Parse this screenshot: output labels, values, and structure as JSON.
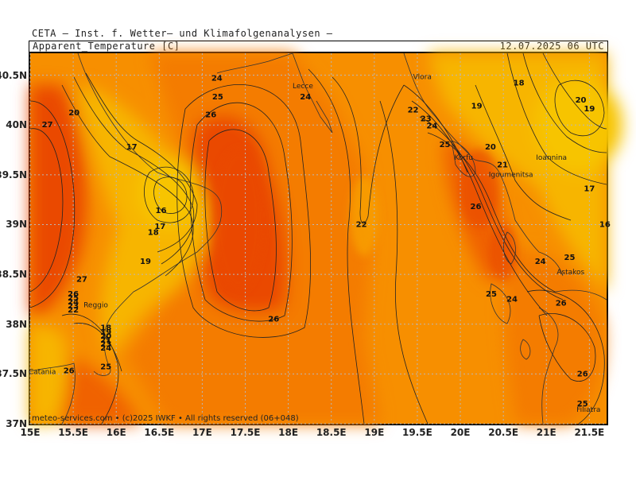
{
  "header": {
    "source": "CETA – Inst. f. Wetter– und Klimafolgenanalysen –",
    "product": "Apparent_Temperature [C]",
    "valid_time": "12.07.2025 06 UTC"
  },
  "footer": "meteo-services.com • (c)2025 IWKF • All rights reserved (06+048)",
  "axes": {
    "lat_ticks": [
      "40.5N",
      "40N",
      "39.5N",
      "39N",
      "38.5N",
      "38N",
      "37.5N",
      "37N"
    ],
    "lon_ticks": [
      "15E",
      "15.5E",
      "16E",
      "16.5E",
      "17E",
      "17.5E",
      "18E",
      "18.5E",
      "19E",
      "19.5E",
      "20E",
      "20.5E",
      "21E",
      "21.5E"
    ],
    "lat_values": [
      40.5,
      40,
      39.5,
      39,
      38.5,
      38,
      37.5,
      37
    ],
    "lon_values": [
      15,
      15.5,
      16,
      16.5,
      17,
      17.5,
      18,
      18.5,
      19,
      19.5,
      20,
      20.5,
      21,
      21.5
    ],
    "lon_range": [
      15,
      21.7
    ],
    "lat_range": [
      37,
      40.72
    ]
  },
  "colors": {
    "t17": "#f7b500",
    "t19": "#f7a000",
    "t22": "#f78f00",
    "t24": "#f47b00",
    "t26": "#f06200",
    "t28": "#ea4a00",
    "grid": "#b8b8b8"
  },
  "contour_labels": [
    {
      "text": "24",
      "lon": 17.17,
      "lat": 40.47
    },
    {
      "text": "25",
      "lon": 17.18,
      "lat": 40.28
    },
    {
      "text": "26",
      "lon": 17.1,
      "lat": 40.1
    },
    {
      "text": "24",
      "lon": 18.2,
      "lat": 40.28
    },
    {
      "text": "20",
      "lon": 15.51,
      "lat": 40.12
    },
    {
      "text": "27",
      "lon": 15.2,
      "lat": 40.0
    },
    {
      "text": "17",
      "lon": 16.18,
      "lat": 39.78
    },
    {
      "text": "16",
      "lon": 16.52,
      "lat": 39.14
    },
    {
      "text": "17",
      "lon": 16.51,
      "lat": 38.98
    },
    {
      "text": "18",
      "lon": 16.43,
      "lat": 38.92
    },
    {
      "text": "19",
      "lon": 16.34,
      "lat": 38.63
    },
    {
      "text": "27",
      "lon": 15.6,
      "lat": 38.45
    },
    {
      "text": "26",
      "lon": 15.5,
      "lat": 38.3
    },
    {
      "text": "25",
      "lon": 15.5,
      "lat": 38.26
    },
    {
      "text": "24",
      "lon": 15.5,
      "lat": 38.22
    },
    {
      "text": "23",
      "lon": 15.5,
      "lat": 38.18
    },
    {
      "text": "22",
      "lon": 15.5,
      "lat": 38.14
    },
    {
      "text": "18",
      "lon": 15.88,
      "lat": 37.96
    },
    {
      "text": "19",
      "lon": 15.88,
      "lat": 37.92
    },
    {
      "text": "20",
      "lon": 15.88,
      "lat": 37.88
    },
    {
      "text": "21",
      "lon": 15.88,
      "lat": 37.84
    },
    {
      "text": "23",
      "lon": 15.88,
      "lat": 37.8
    },
    {
      "text": "24",
      "lon": 15.88,
      "lat": 37.76
    },
    {
      "text": "25",
      "lon": 15.88,
      "lat": 37.57
    },
    {
      "text": "26",
      "lon": 15.45,
      "lat": 37.53
    },
    {
      "text": "26",
      "lon": 17.83,
      "lat": 38.05
    },
    {
      "text": "22",
      "lon": 18.85,
      "lat": 39.0
    },
    {
      "text": "22",
      "lon": 19.45,
      "lat": 40.15
    },
    {
      "text": "23",
      "lon": 19.6,
      "lat": 40.06
    },
    {
      "text": "24",
      "lon": 19.67,
      "lat": 39.99
    },
    {
      "text": "25",
      "lon": 19.82,
      "lat": 39.8
    },
    {
      "text": "20",
      "lon": 20.35,
      "lat": 39.78
    },
    {
      "text": "21",
      "lon": 20.49,
      "lat": 39.6
    },
    {
      "text": "19",
      "lon": 20.19,
      "lat": 40.19
    },
    {
      "text": "18",
      "lon": 20.68,
      "lat": 40.42
    },
    {
      "text": "20",
      "lon": 21.4,
      "lat": 40.25
    },
    {
      "text": "19",
      "lon": 21.5,
      "lat": 40.16
    },
    {
      "text": "17",
      "lon": 21.5,
      "lat": 39.36
    },
    {
      "text": "16",
      "lon": 21.68,
      "lat": 39.0
    },
    {
      "text": "26",
      "lon": 20.18,
      "lat": 39.18
    },
    {
      "text": "24",
      "lon": 20.93,
      "lat": 38.63
    },
    {
      "text": "25",
      "lon": 21.27,
      "lat": 38.67
    },
    {
      "text": "25",
      "lon": 20.36,
      "lat": 38.3
    },
    {
      "text": "24",
      "lon": 20.6,
      "lat": 38.25
    },
    {
      "text": "26",
      "lon": 21.17,
      "lat": 38.21
    },
    {
      "text": "26",
      "lon": 21.42,
      "lat": 37.5
    },
    {
      "text": "25",
      "lon": 21.42,
      "lat": 37.2
    }
  ],
  "place_labels": [
    {
      "text": "Vlora",
      "lon": 19.45,
      "lat": 40.46
    },
    {
      "text": "Lecce",
      "lon": 18.05,
      "lat": 40.37
    },
    {
      "text": "Korfu",
      "lon": 19.93,
      "lat": 39.65
    },
    {
      "text": "Igoumenitsa",
      "lon": 20.33,
      "lat": 39.48
    },
    {
      "text": "Ioannina",
      "lon": 20.88,
      "lat": 39.65
    },
    {
      "text": "Astakos",
      "lon": 21.12,
      "lat": 38.5
    },
    {
      "text": "Reggio",
      "lon": 15.62,
      "lat": 38.17
    },
    {
      "text": "Filiatra",
      "lon": 21.35,
      "lat": 37.12
    },
    {
      "text": "Catania",
      "lon": 14.98,
      "lat": 37.5
    }
  ]
}
